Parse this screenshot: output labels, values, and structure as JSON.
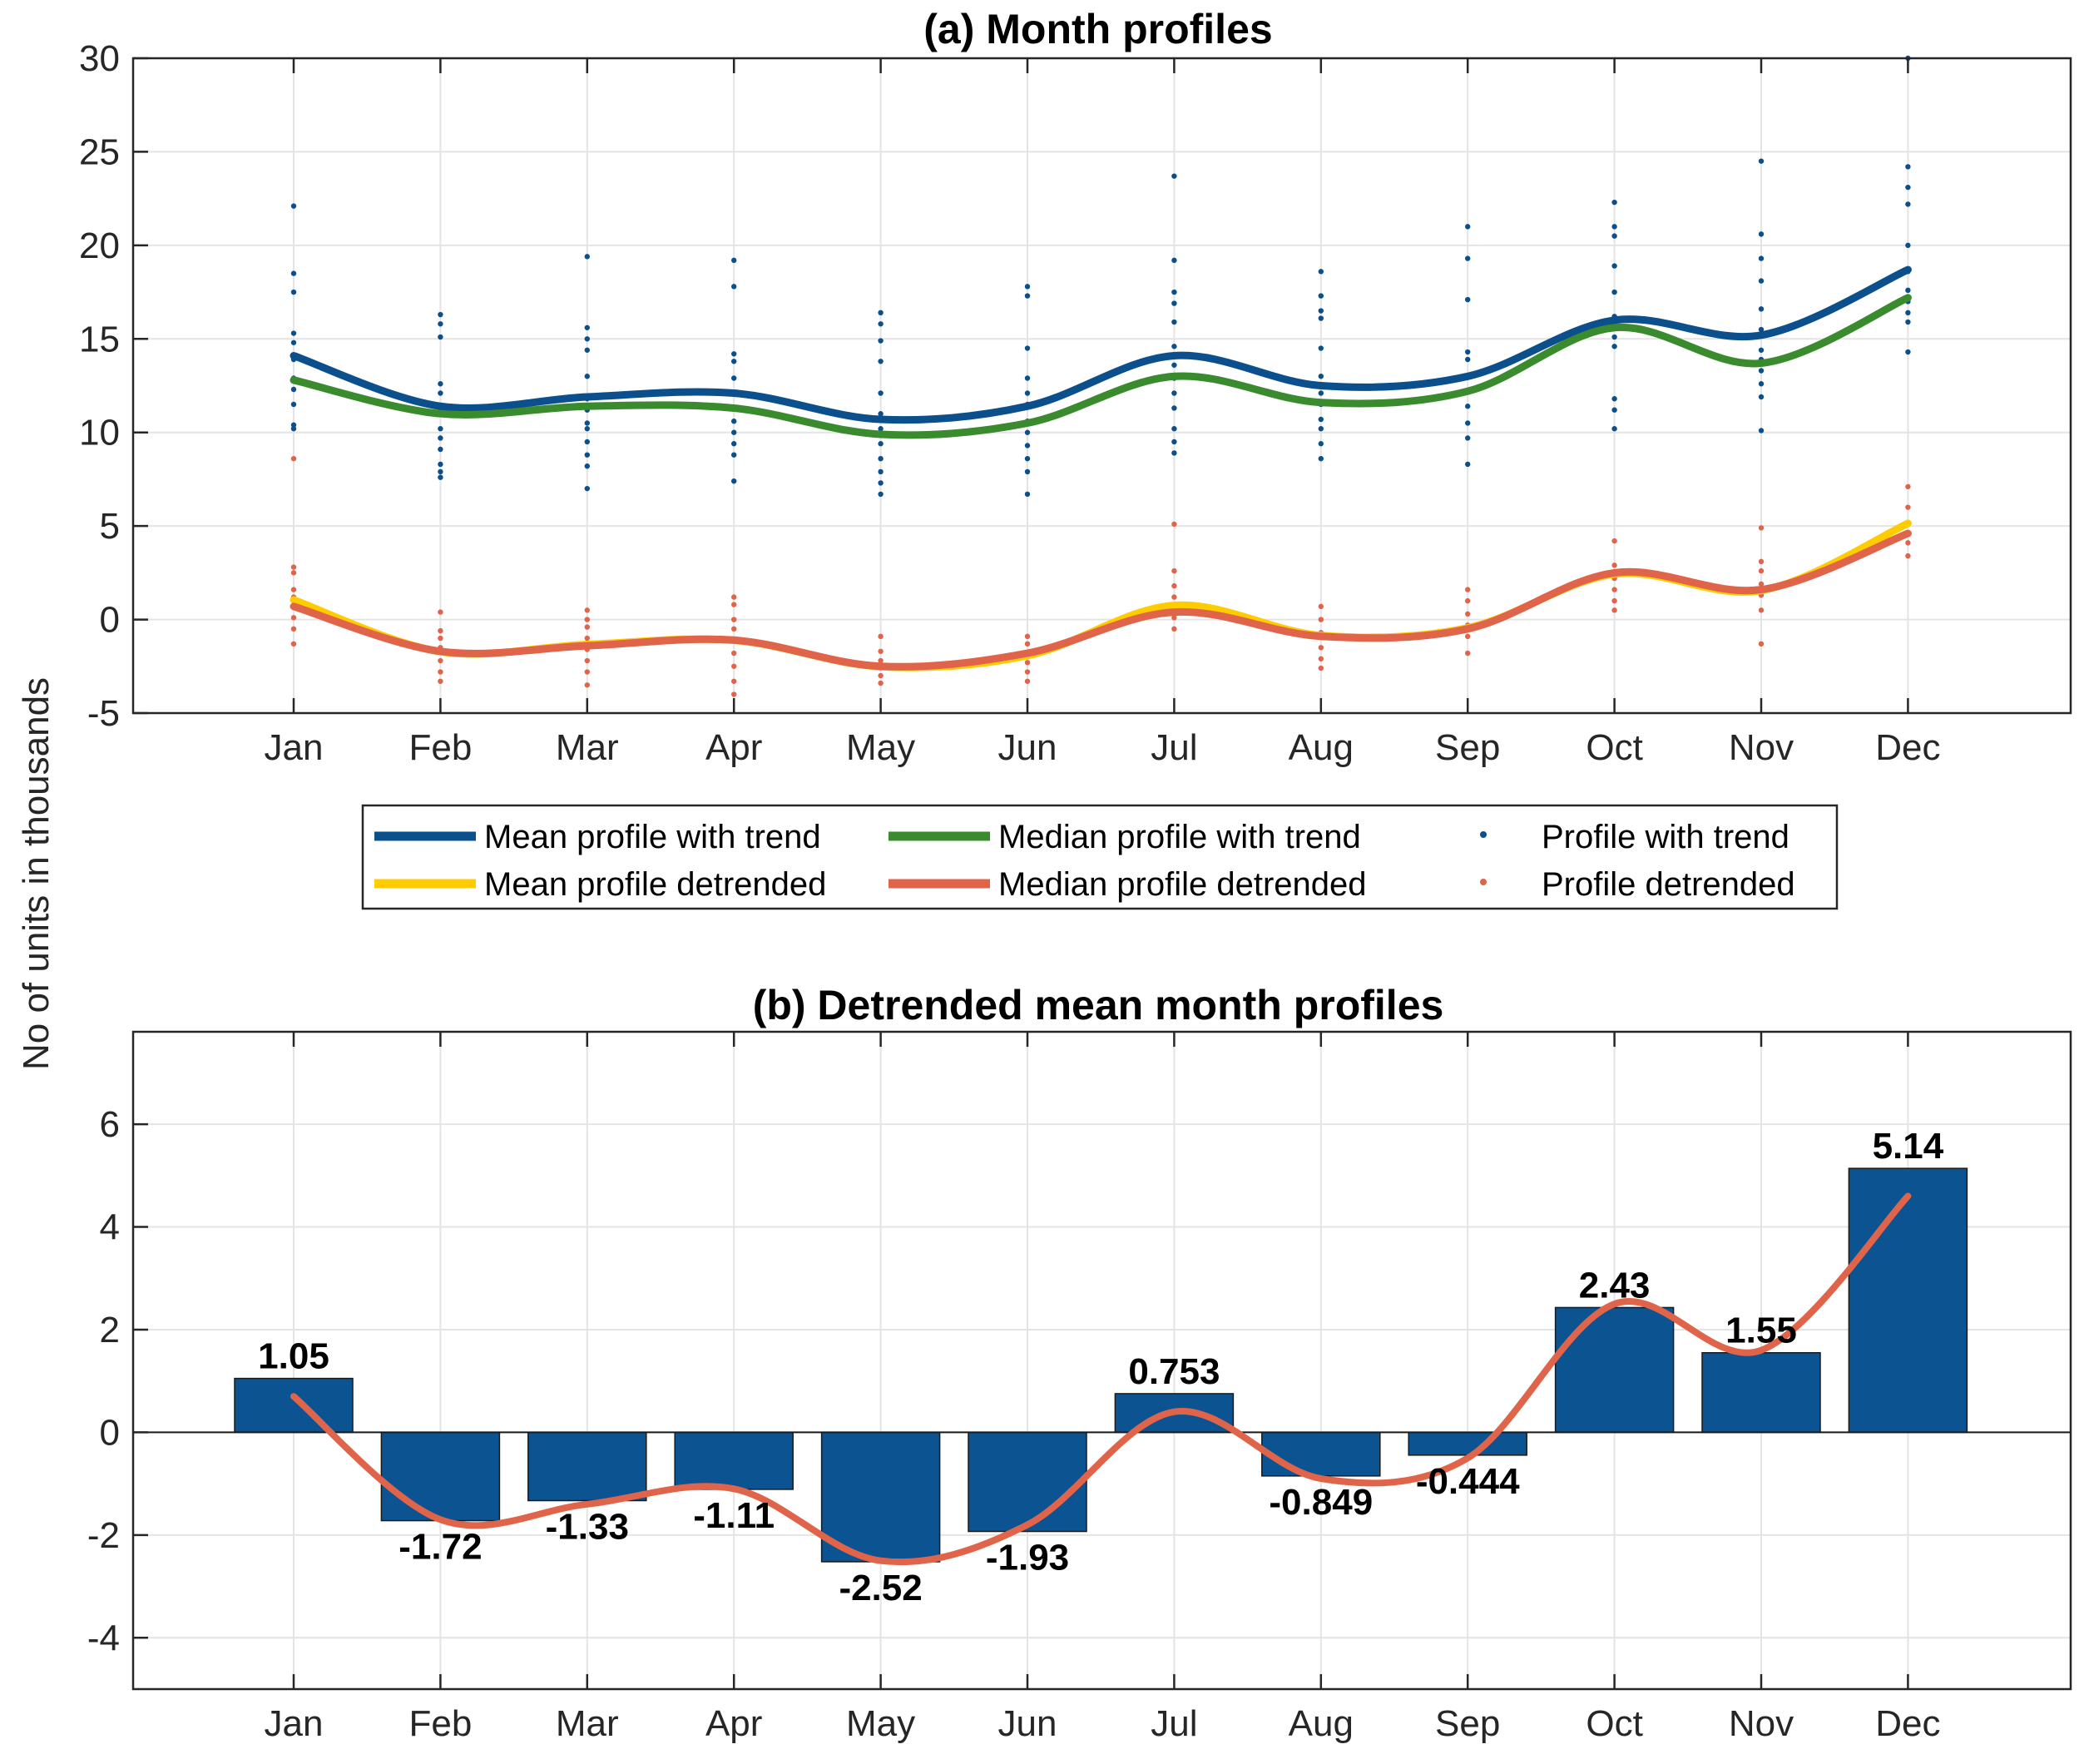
{
  "colors": {
    "mean_trend": "#0b4f8c",
    "median_trend": "#3a8a2e",
    "mean_detrended": "#ffcc00",
    "median_detrended": "#e0644a",
    "bar": "#0b5391",
    "grid": "#e4e4e4",
    "axis": "#262626"
  },
  "ylabel": "No of units in thousands",
  "chart_data": [
    {
      "type": "line",
      "title": "(a) Month profiles",
      "categories": [
        "Jan",
        "Feb",
        "Mar",
        "Apr",
        "May",
        "Jun",
        "Jul",
        "Aug",
        "Sep",
        "Oct",
        "Nov",
        "Dec"
      ],
      "ylim": [
        -5,
        30
      ],
      "yticks": [
        -5,
        0,
        5,
        10,
        15,
        20,
        25,
        30
      ],
      "series": [
        {
          "name": "Mean profile with trend",
          "style": "line",
          "color_key": "mean_trend",
          "values": [
            14.1,
            11.4,
            11.9,
            12.1,
            10.7,
            11.4,
            14.1,
            12.5,
            13.0,
            16.0,
            15.2,
            18.7
          ]
        },
        {
          "name": "Median profile with trend",
          "style": "line",
          "color_key": "median_trend",
          "values": [
            12.8,
            11.0,
            11.4,
            11.3,
            9.9,
            10.5,
            13.0,
            11.6,
            12.2,
            15.6,
            13.7,
            17.2
          ]
        },
        {
          "name": "Profile with trend",
          "style": "dots",
          "color_key": "mean_trend",
          "points": [
            [
              22.1,
              18.5,
              17.5,
              15.3,
              14.8,
              13.9,
              12.9,
              12.3,
              11.5,
              10.4,
              10.2
            ],
            [
              16.3,
              15.8,
              15.1,
              12.6,
              12.1,
              11.3,
              10.2,
              9.7,
              9.1,
              8.3,
              7.9,
              7.6
            ],
            [
              19.4,
              15.6,
              15.0,
              14.4,
              13.0,
              11.8,
              11.2,
              10.5,
              10.2,
              9.5,
              8.8,
              8.2,
              7.0
            ],
            [
              19.2,
              17.8,
              14.2,
              13.8,
              12.9,
              12.1,
              11.3,
              10.6,
              10.0,
              9.4,
              8.8,
              7.4
            ],
            [
              16.4,
              15.8,
              14.9,
              13.8,
              12.1,
              11.0,
              10.2,
              9.4,
              8.6,
              7.9,
              7.3,
              6.7
            ],
            [
              17.8,
              17.3,
              14.5,
              12.9,
              12.1,
              11.5,
              10.6,
              10.0,
              9.3,
              8.6,
              7.9,
              6.7
            ],
            [
              23.7,
              19.2,
              17.5,
              16.9,
              15.9,
              14.6,
              13.6,
              12.9,
              12.1,
              11.3,
              10.2,
              9.5,
              8.9
            ],
            [
              18.6,
              17.3,
              16.5,
              16.1,
              14.5,
              13.0,
              12.1,
              11.5,
              10.7,
              10.2,
              9.4,
              8.6
            ],
            [
              21.0,
              19.3,
              17.1,
              14.3,
              13.9,
              13.0,
              12.2,
              11.4,
              10.5,
              9.7,
              8.3
            ],
            [
              22.3,
              21.0,
              20.5,
              18.9,
              17.5,
              16.2,
              15.7,
              15.1,
              14.6,
              11.8,
              11.2,
              10.2
            ],
            [
              24.5,
              20.6,
              19.3,
              18.1,
              16.6,
              15.5,
              14.4,
              13.9,
              13.3,
              12.6,
              11.9,
              10.1
            ],
            [
              30.0,
              24.2,
              23.1,
              22.2,
              20.0,
              18.6,
              17.6,
              17.0,
              16.4,
              15.9,
              14.3
            ]
          ]
        },
        {
          "name": "Mean profile detrended",
          "style": "line",
          "color_key": "mean_detrended",
          "values": [
            1.05,
            -1.72,
            -1.33,
            -1.11,
            -2.52,
            -1.93,
            0.753,
            -0.849,
            -0.444,
            2.43,
            1.55,
            5.14
          ]
        },
        {
          "name": "Median profile detrended",
          "style": "line",
          "color_key": "median_detrended",
          "values": [
            0.7,
            -1.7,
            -1.4,
            -1.1,
            -2.5,
            -1.8,
            0.4,
            -0.9,
            -0.5,
            2.5,
            1.6,
            4.6
          ]
        },
        {
          "name": "Profile detrended",
          "style": "dots",
          "color_key": "median_detrended",
          "points": [
            [
              8.6,
              2.8,
              2.5,
              1.6,
              1.2,
              0.7,
              0.1,
              -0.5,
              -1.3
            ],
            [
              0.4,
              -0.6,
              -1.0,
              -1.5,
              -2.2,
              -2.8,
              -3.3
            ],
            [
              0.5,
              0.0,
              -0.4,
              -1.0,
              -1.6,
              -2.2,
              -2.8,
              -3.5
            ],
            [
              1.2,
              0.8,
              0.0,
              -0.5,
              -1.1,
              -1.8,
              -2.5,
              -3.3,
              -4.0
            ],
            [
              -0.9,
              -1.7,
              -2.2,
              -2.6,
              -3.0,
              -3.4
            ],
            [
              -0.9,
              -1.3,
              -1.8,
              -2.3,
              -2.8,
              -3.3
            ],
            [
              5.1,
              2.6,
              1.8,
              1.2,
              0.6,
              0.1,
              -0.5
            ],
            [
              0.7,
              0.0,
              -0.7,
              -1.5,
              -2.1,
              -2.6
            ],
            [
              1.6,
              1.0,
              0.3,
              -0.3,
              -0.9,
              -1.8
            ],
            [
              4.2,
              2.9,
              2.2,
              1.6,
              1.0,
              0.5
            ],
            [
              4.9,
              3.1,
              2.6,
              1.9,
              1.3,
              0.5,
              -1.3
            ],
            [
              7.1,
              6.0,
              5.1,
              4.6,
              4.1,
              3.4
            ]
          ]
        }
      ]
    },
    {
      "type": "bar",
      "title": "(b) Detrended mean month profiles",
      "categories": [
        "Jan",
        "Feb",
        "Mar",
        "Apr",
        "May",
        "Jun",
        "Jul",
        "Aug",
        "Sep",
        "Oct",
        "Nov",
        "Dec"
      ],
      "values": [
        1.05,
        -1.72,
        -1.33,
        -1.11,
        -2.52,
        -1.93,
        0.753,
        -0.849,
        -0.444,
        2.43,
        1.55,
        5.14
      ],
      "labels": [
        "1.05",
        "-1.72",
        "-1.33",
        "-1.11",
        "-2.52",
        "-1.93",
        "0.753",
        "-0.849",
        "-0.444",
        "2.43",
        "1.55",
        "5.14"
      ],
      "ylim": [
        -5,
        7.8
      ],
      "yticks": [
        -4,
        -2,
        0,
        2,
        4,
        6
      ],
      "overlay_line": "Median profile detrended"
    }
  ]
}
